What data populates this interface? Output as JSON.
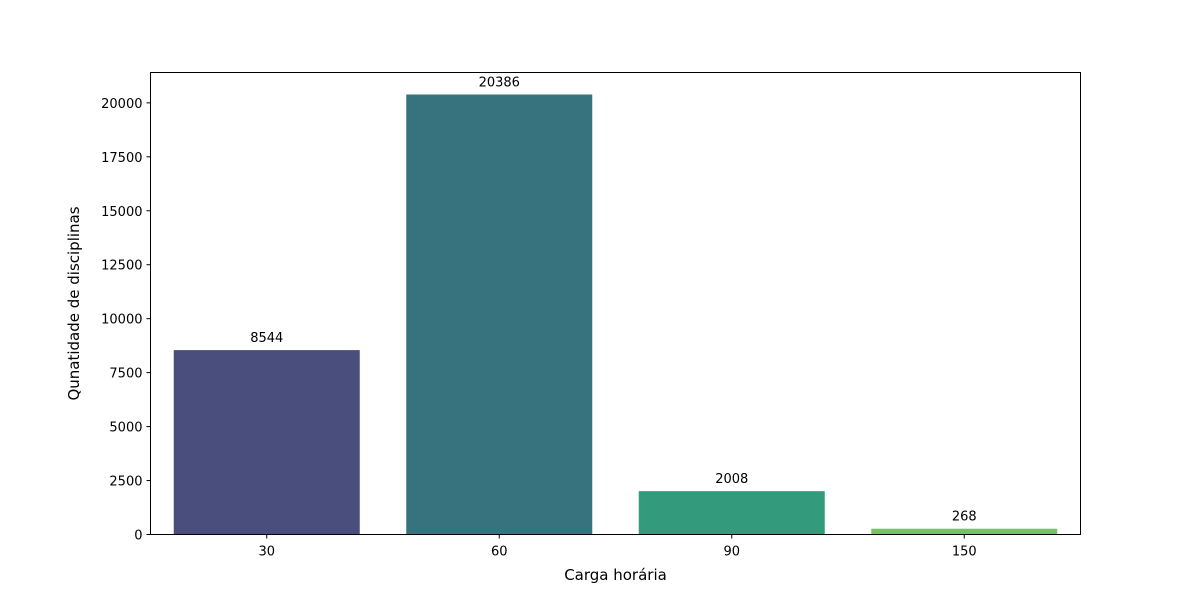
{
  "chart_data": {
    "type": "bar",
    "categories": [
      "30",
      "60",
      "90",
      "150"
    ],
    "values": [
      8544,
      20386,
      2008,
      268
    ],
    "data_labels": [
      "8544",
      "20386",
      "2008",
      "268"
    ],
    "colors": [
      "#4a4e7d",
      "#37737f",
      "#339a7c",
      "#77c35e"
    ],
    "xlabel": "Carga horária",
    "ylabel": "Qunatidade de disciplinas",
    "ylim": [
      0,
      21406
    ],
    "yticks": [
      0,
      2500,
      5000,
      7500,
      10000,
      12500,
      15000,
      17500,
      20000
    ],
    "ytick_labels": [
      "0",
      "2500",
      "5000",
      "7500",
      "10000",
      "12500",
      "15000",
      "17500",
      "20000"
    ],
    "grid": false,
    "legend": "none"
  }
}
